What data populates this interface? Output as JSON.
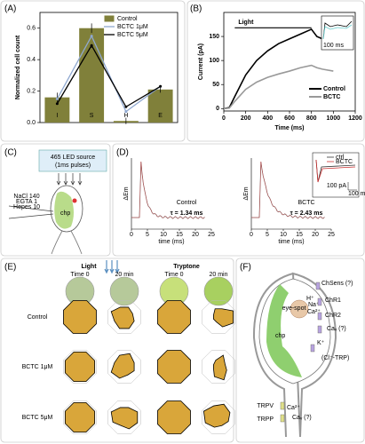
{
  "panel_labels": [
    "(A)",
    "(B)",
    "(C)",
    "(D)",
    "(E)",
    "(F)"
  ],
  "chart_data": [
    {
      "type": "bar",
      "ylabel": "Normalized cell count",
      "categories": [
        "I",
        "S",
        "H",
        "E"
      ],
      "ylim": [
        0,
        0.7
      ],
      "yticks": [
        {
          "value": 0,
          "label": "0.0"
        },
        0.2,
        0.4,
        0.6
      ],
      "annotation": "*",
      "series": [
        {
          "name": "Control",
          "color": "#80803a",
          "values": [
            0.16,
            0.6,
            0.01,
            0.21
          ],
          "errors": [
            0.03,
            0.03,
            0.02,
            0.02
          ]
        },
        {
          "name": "BCTC 1μM",
          "color": "#8fa8d0",
          "values": [
            0.15,
            0.55,
            0.07,
            0.23
          ]
        },
        {
          "name": "BCTC 5μM",
          "color": "#000000",
          "values": [
            0.12,
            0.49,
            0.1,
            0.23
          ]
        }
      ]
    },
    {
      "type": "line",
      "xlabel": "Time (ms)",
      "ylabel": "Current (pA)",
      "xlim": [
        0,
        1200
      ],
      "xticks": [
        0,
        200,
        400,
        600,
        800,
        1000,
        1200
      ],
      "ylim": [
        -5,
        200
      ],
      "yticks": [
        0,
        50,
        100,
        150
      ],
      "light": {
        "text": "Light",
        "x": [
          100,
          800
        ],
        "y": 168
      },
      "inset_label": "100 ms",
      "legend": "lower right",
      "x": [
        0,
        50,
        100,
        200,
        300,
        400,
        500,
        600,
        700,
        800,
        850,
        900,
        1000
      ],
      "series": [
        {
          "name": "Control",
          "color": "#000000",
          "values": [
            0,
            2,
            25,
            70,
            100,
            120,
            135,
            145,
            155,
            165,
            150,
            145,
            135
          ]
        },
        {
          "name": "BCTC",
          "color": "#999999",
          "values": [
            0,
            1,
            15,
            40,
            55,
            65,
            72,
            78,
            85,
            90,
            85,
            82,
            78
          ]
        }
      ]
    }
  ],
  "panel_c": {
    "source": "465 LED source",
    "pulses": "(1ms pulses)",
    "solution": [
      "NaCl 140",
      "EGTA 1",
      "Hepes 10"
    ],
    "chp": "chp"
  },
  "panel_d": {
    "ylabel": "ΔEm",
    "xlabel": "time (ms)",
    "xlim": [
      0,
      25
    ],
    "xticks": [
      0,
      5,
      10,
      15,
      20,
      25
    ],
    "traces": [
      {
        "name": "Control",
        "tau": "τ = 1.34 ms"
      },
      {
        "name": "BCTC",
        "tau": "τ = 2.43 ms"
      }
    ],
    "inset": {
      "legend": [
        "ctrl",
        "BCTC"
      ],
      "scale": [
        "100 pA",
        "100 ms"
      ]
    }
  },
  "panel_e": {
    "groups": [
      "Light",
      "Tryptone"
    ],
    "times": [
      "Time 0",
      "20 min",
      "Time 0",
      "20 min"
    ],
    "rows": [
      "Control",
      "BCTC 1μM",
      "BCTC 5μM"
    ]
  },
  "panel_f": {
    "labels": [
      "ChSens (?)",
      "ChR1",
      "H⁺",
      "Na⁺",
      "Ca²⁺",
      "ChR2",
      "Caᵥ (?)",
      "K⁺",
      "(Cl⁻-TRP)",
      "eye-spot",
      "chp",
      "TRPV",
      "TRPP",
      "Ca²⁺",
      "Caᵥ (?)"
    ]
  }
}
